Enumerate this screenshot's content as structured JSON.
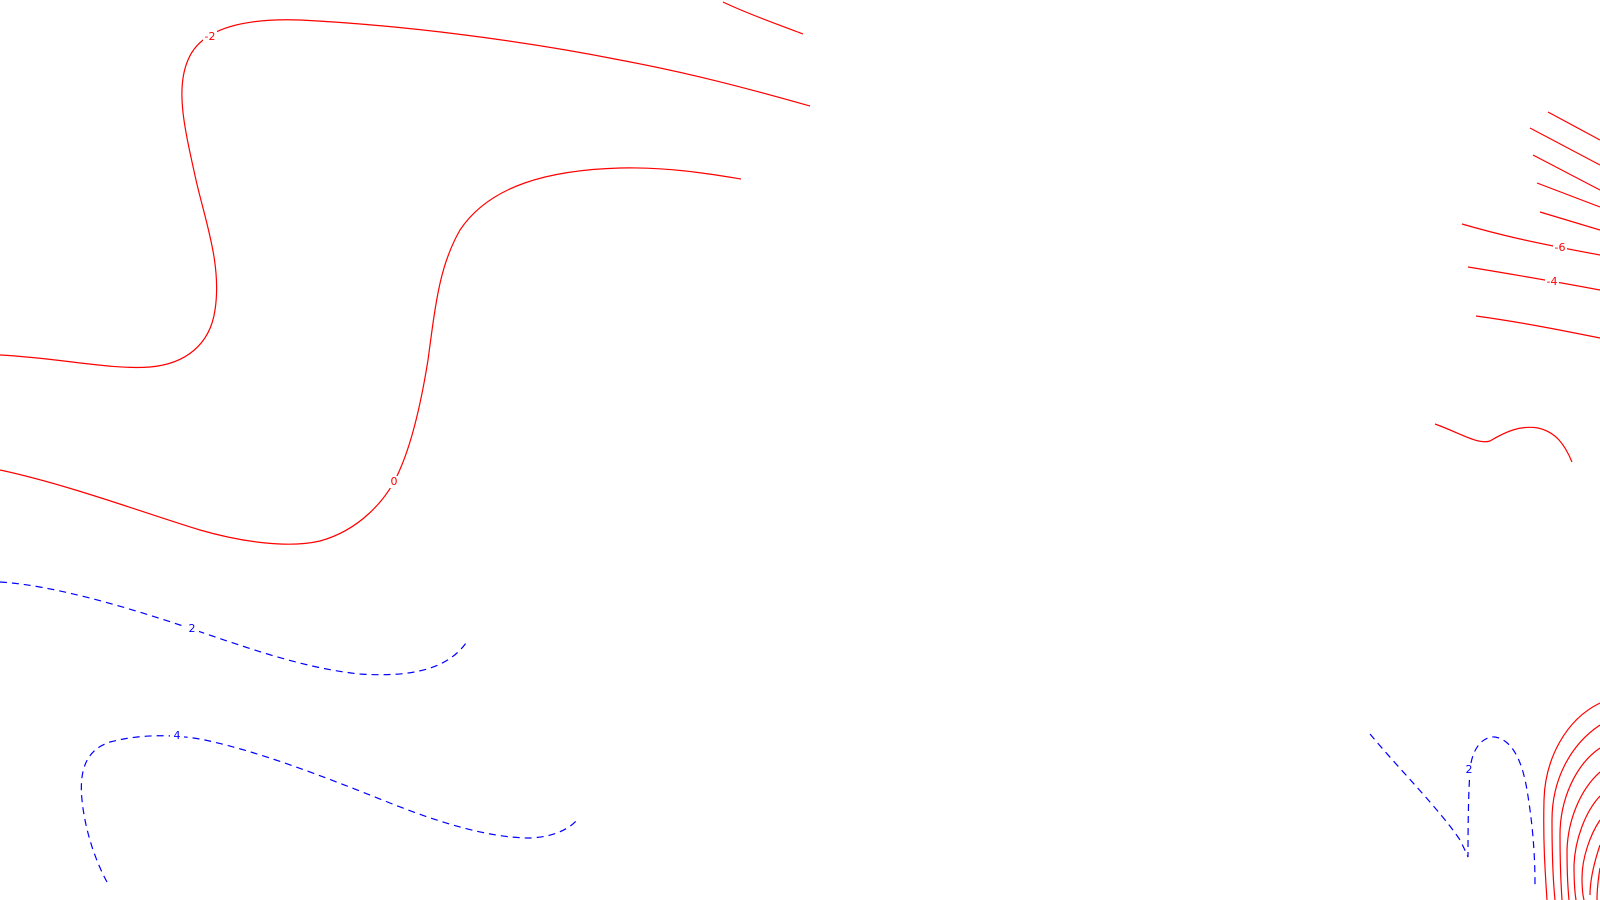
{
  "chart_data": {
    "type": "contour",
    "title": "",
    "xlabel": "",
    "ylabel": "",
    "grid": false,
    "legend": "none",
    "styles": {
      "negative_and_zero": {
        "color": "#ff0000",
        "dash": "solid"
      },
      "positive": {
        "color": "#0000ff",
        "dash": "dashed"
      }
    },
    "labels": [
      {
        "id": "label-neg2",
        "text": "-2",
        "level": -2
      },
      {
        "id": "label-0",
        "text": "0",
        "level": 0
      },
      {
        "id": "label-2-left",
        "text": "2",
        "level": 2
      },
      {
        "id": "label-4-left",
        "text": "4",
        "level": 4
      },
      {
        "id": "label-neg6-right",
        "text": "-6",
        "level": -6
      },
      {
        "id": "label-neg4-right",
        "text": "-4",
        "level": -4
      },
      {
        "id": "label-2-right",
        "text": "2",
        "level": 2
      }
    ]
  }
}
